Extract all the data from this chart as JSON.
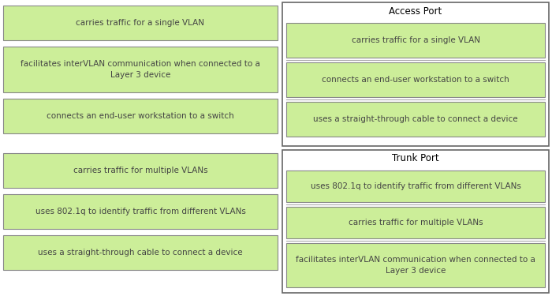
{
  "bg_color": "#ffffff",
  "box_fill": "#ccee99",
  "box_edge": "#888888",
  "outer_fill": "#ffffff",
  "outer_edge": "#666666",
  "divider_color": "#aaaaaa",
  "text_color": "#444444",
  "title_color": "#000000",
  "left_items_top": [
    "carries traffic for a single VLAN",
    "facilitates interVLAN communication when connected to a\nLayer 3 device",
    "connects an end-user workstation to a switch"
  ],
  "left_items_bot": [
    "carries traffic for multiple VLANs",
    "uses 802.1q to identify traffic from different VLANs",
    "uses a straight-through cable to connect a device"
  ],
  "access_title": "Access Port",
  "access_items": [
    "carries traffic for a single VLAN",
    "connects an end-user workstation to a switch",
    "uses a straight-through cable to connect a device"
  ],
  "trunk_title": "Trunk Port",
  "trunk_items": [
    "uses 802.1q to identify traffic from different VLANs",
    "carries traffic for multiple VLANs",
    "facilitates interVLAN communication when connected to a\nLayer 3 device"
  ],
  "font_size": 7.5,
  "title_font_size": 8.5
}
